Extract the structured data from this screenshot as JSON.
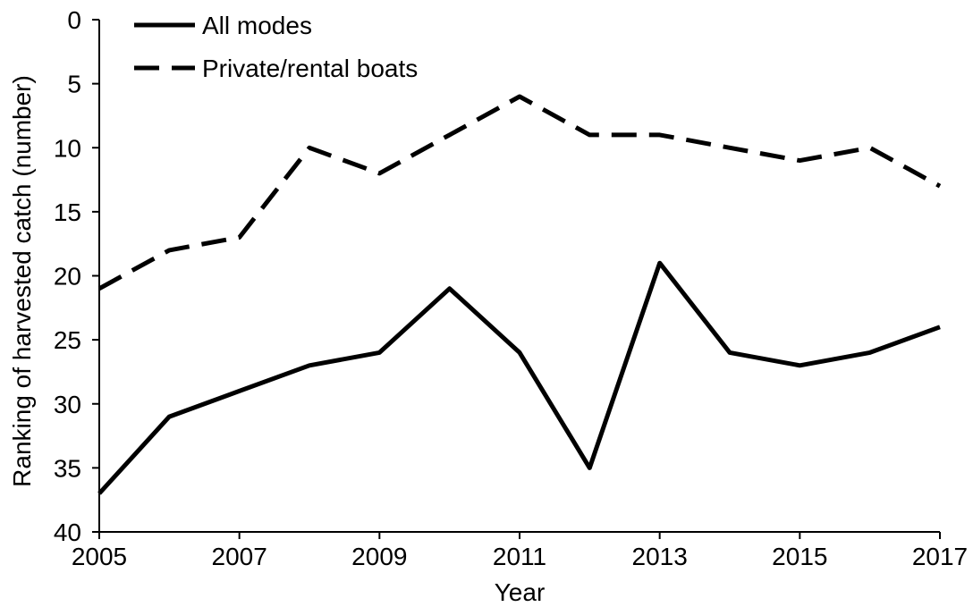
{
  "chart_data": {
    "type": "line",
    "title": "",
    "xlabel": "Year",
    "ylabel": "Ranking of harvested catch (number)",
    "x": [
      2005,
      2006,
      2007,
      2008,
      2009,
      2010,
      2011,
      2012,
      2013,
      2014,
      2015,
      2016,
      2017
    ],
    "xlim": [
      2005,
      2017
    ],
    "xticks": [
      "2005",
      "2007",
      "2009",
      "2011",
      "2013",
      "2015",
      "2017"
    ],
    "ylim": [
      0,
      40
    ],
    "y_inverted": true,
    "yticks": [
      "0",
      "5",
      "10",
      "15",
      "20",
      "25",
      "30",
      "35",
      "40"
    ],
    "grid": false,
    "legend_position": "top-left",
    "series": [
      {
        "name": "All modes",
        "style": "solid",
        "color": "#000000",
        "values": [
          37,
          31,
          29,
          27,
          26,
          21,
          26,
          35,
          19,
          26,
          27,
          26,
          24
        ]
      },
      {
        "name": "Private/rental boats",
        "style": "dashed",
        "color": "#000000",
        "values": [
          21,
          18,
          17,
          10,
          12,
          9,
          6,
          9,
          9,
          10,
          11,
          10,
          13
        ]
      }
    ]
  }
}
